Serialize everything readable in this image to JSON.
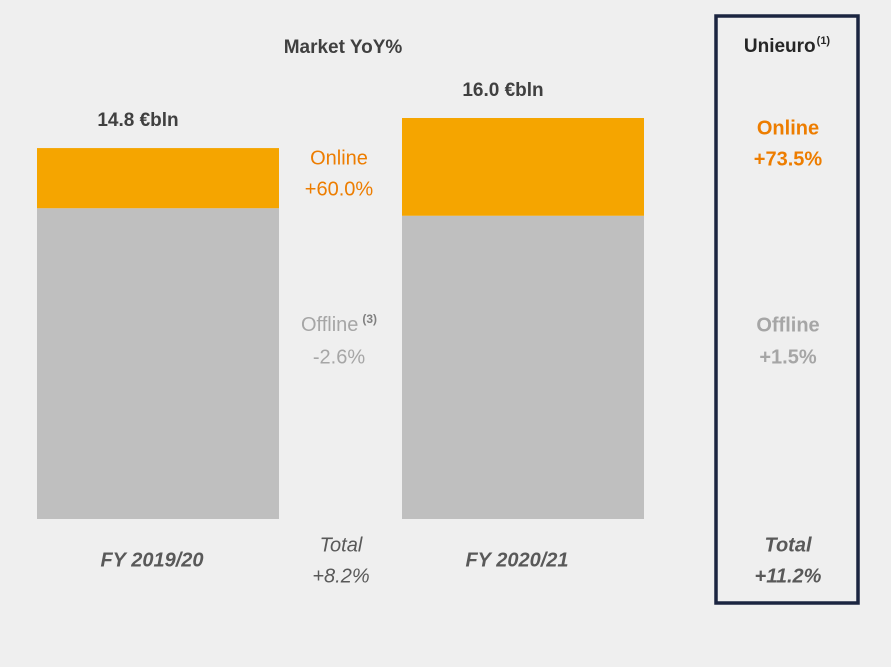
{
  "chart_data": {
    "type": "bar",
    "stacked": true,
    "title": "Market YoY%",
    "categories": [
      "FY 2019/20",
      "FY 2020/21"
    ],
    "series": [
      {
        "name": "Offline",
        "color": "#bfbfbf",
        "values": [
          12.4,
          12.1
        ]
      },
      {
        "name": "Online",
        "color": "#f5a500",
        "values": [
          2.4,
          3.9
        ]
      }
    ],
    "totals": [
      14.8,
      16.0
    ],
    "total_labels": [
      "14.8 €bln",
      "16.0 €bln"
    ],
    "market": {
      "offline_note": "(3)",
      "online_change": "+60.0%",
      "offline_change": "-2.6%",
      "total_label": "Total",
      "total_change": "+8.2%"
    },
    "unieuro": {
      "title": "Unieuro",
      "note": "(1)",
      "online_change": "+73.5%",
      "offline_change": "+1.5%",
      "total_label": "Total",
      "total_change": "+11.2%"
    }
  }
}
